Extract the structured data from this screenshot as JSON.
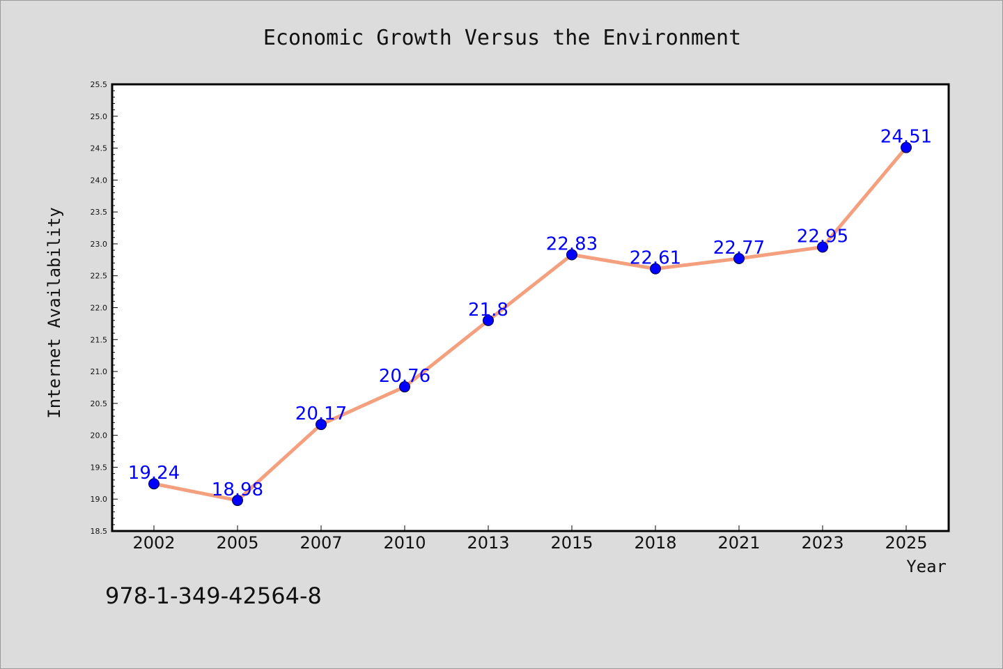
{
  "chart_data": {
    "type": "line",
    "title": "Economic Growth Versus the Environment",
    "xlabel": "Year",
    "ylabel": "Internet Availability",
    "categories": [
      "2002",
      "2005",
      "2007",
      "2010",
      "2013",
      "2015",
      "2018",
      "2021",
      "2023",
      "2025"
    ],
    "series": [
      {
        "values": [
          19.24,
          18.98,
          20.17,
          20.76,
          21.8,
          22.83,
          22.61,
          22.77,
          22.95,
          24.51
        ],
        "line_color": "#f4a07e",
        "marker_color": "#0000ff"
      }
    ],
    "data_labels": [
      "19.24",
      "18.98",
      "20.17",
      "20.76",
      "21.8",
      "22.83",
      "22.61",
      "22.77",
      "22.95",
      "24.51"
    ],
    "ylim": [
      18.5,
      25.5
    ],
    "yticks": [
      "18.5",
      "19.0",
      "19.5",
      "20.0",
      "20.5",
      "21.0",
      "21.5",
      "22.0",
      "22.5",
      "23.0",
      "23.5",
      "24.0",
      "24.5",
      "25.0",
      "25.5"
    ],
    "grid": false,
    "legend": "none",
    "plot_background": "#ffffff",
    "page_background": "#dcdcdc",
    "label_color": "#0000ff"
  },
  "footer": {
    "isbn": "978-1-349-42564-8"
  }
}
